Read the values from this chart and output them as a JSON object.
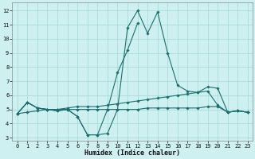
{
  "xlabel": "Humidex (Indice chaleur)",
  "x": [
    0,
    1,
    2,
    3,
    4,
    5,
    6,
    7,
    8,
    9,
    10,
    11,
    12,
    13,
    14,
    15,
    16,
    17,
    18,
    19,
    20,
    21,
    22,
    23
  ],
  "line1": [
    4.7,
    5.5,
    5.1,
    5.0,
    4.9,
    5.0,
    4.5,
    3.2,
    3.2,
    3.3,
    5.0,
    10.8,
    12.0,
    10.4,
    11.9,
    9.0,
    6.7,
    6.3,
    6.2,
    6.6,
    6.5,
    4.8,
    4.9,
    4.8
  ],
  "line2": [
    4.7,
    5.5,
    5.1,
    5.0,
    4.9,
    5.0,
    4.5,
    3.2,
    3.2,
    5.0,
    7.6,
    9.2,
    11.1,
    null,
    null,
    null,
    null,
    null,
    null,
    null,
    null,
    null,
    null,
    null
  ],
  "line3": [
    4.7,
    5.5,
    5.1,
    5.0,
    5.0,
    5.1,
    5.2,
    5.2,
    5.2,
    5.3,
    5.4,
    5.5,
    5.6,
    5.7,
    5.8,
    5.9,
    6.0,
    6.1,
    6.2,
    6.3,
    5.3,
    4.8,
    4.9,
    4.8
  ],
  "line4": [
    4.7,
    4.8,
    4.9,
    5.0,
    5.0,
    5.0,
    5.0,
    5.0,
    5.0,
    5.0,
    5.0,
    5.0,
    5.0,
    5.1,
    5.1,
    5.1,
    5.1,
    5.1,
    5.1,
    5.2,
    5.2,
    4.8,
    4.9,
    4.8
  ],
  "bg_color": "#cff0f0",
  "grid_color": "#a0d8d8",
  "line_color": "#1a6e6e",
  "ylim": [
    2.8,
    12.6
  ],
  "xlim": [
    -0.5,
    23.5
  ],
  "yticks": [
    3,
    4,
    5,
    6,
    7,
    8,
    9,
    10,
    11,
    12
  ],
  "xticks": [
    0,
    1,
    2,
    3,
    4,
    5,
    6,
    7,
    8,
    9,
    10,
    11,
    12,
    13,
    14,
    15,
    16,
    17,
    18,
    19,
    20,
    21,
    22,
    23
  ]
}
